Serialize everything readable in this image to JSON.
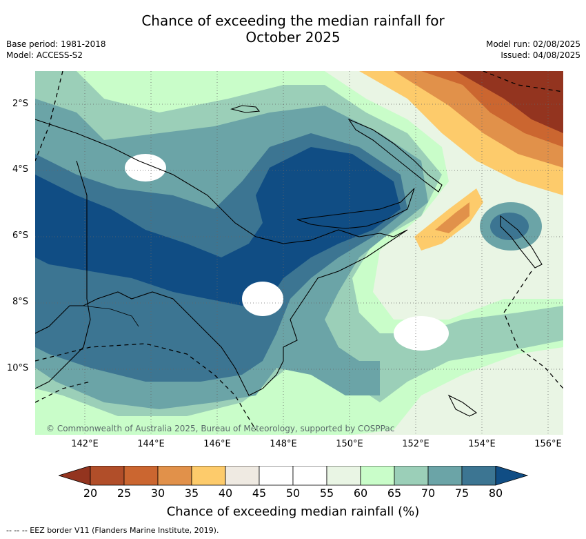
{
  "title": {
    "line1": "Chance of exceeding the median rainfall for",
    "line2": "October 2025"
  },
  "meta": {
    "base_period": "Base period: 1981-2018",
    "model": "Model: ACCESS-S2",
    "model_run": "Model run: 02/08/2025",
    "issued": "Issued: 04/08/2025"
  },
  "map": {
    "copyright": "© Commonwealth of Australia 2025, Bureau of Meteorology, supported by COSPPac",
    "lat_labels": [
      "2°S",
      "4°S",
      "6°S",
      "8°S",
      "10°S"
    ],
    "lon_labels": [
      "142°E",
      "144°E",
      "146°E",
      "148°E",
      "150°E",
      "152°E",
      "154°E",
      "156°E"
    ]
  },
  "colorbar": {
    "ticks": [
      "20",
      "25",
      "30",
      "35",
      "40",
      "45",
      "50",
      "55",
      "60",
      "65",
      "70",
      "75",
      "80"
    ],
    "colors": [
      "#93341f",
      "#b14e29",
      "#cb6630",
      "#e1914a",
      "#fdcb6b",
      "#efeae2",
      "#ffffff",
      "#ffffff",
      "#e9f5e4",
      "#c9fdc9",
      "#9bcfb8",
      "#6ba4a7",
      "#3c7592",
      "#104d84"
    ],
    "label": "Chance of exceeding median rainfall (%)"
  },
  "footer": "--  --  -- EEZ border V11 (Flanders Marine Institute, 2019)."
}
